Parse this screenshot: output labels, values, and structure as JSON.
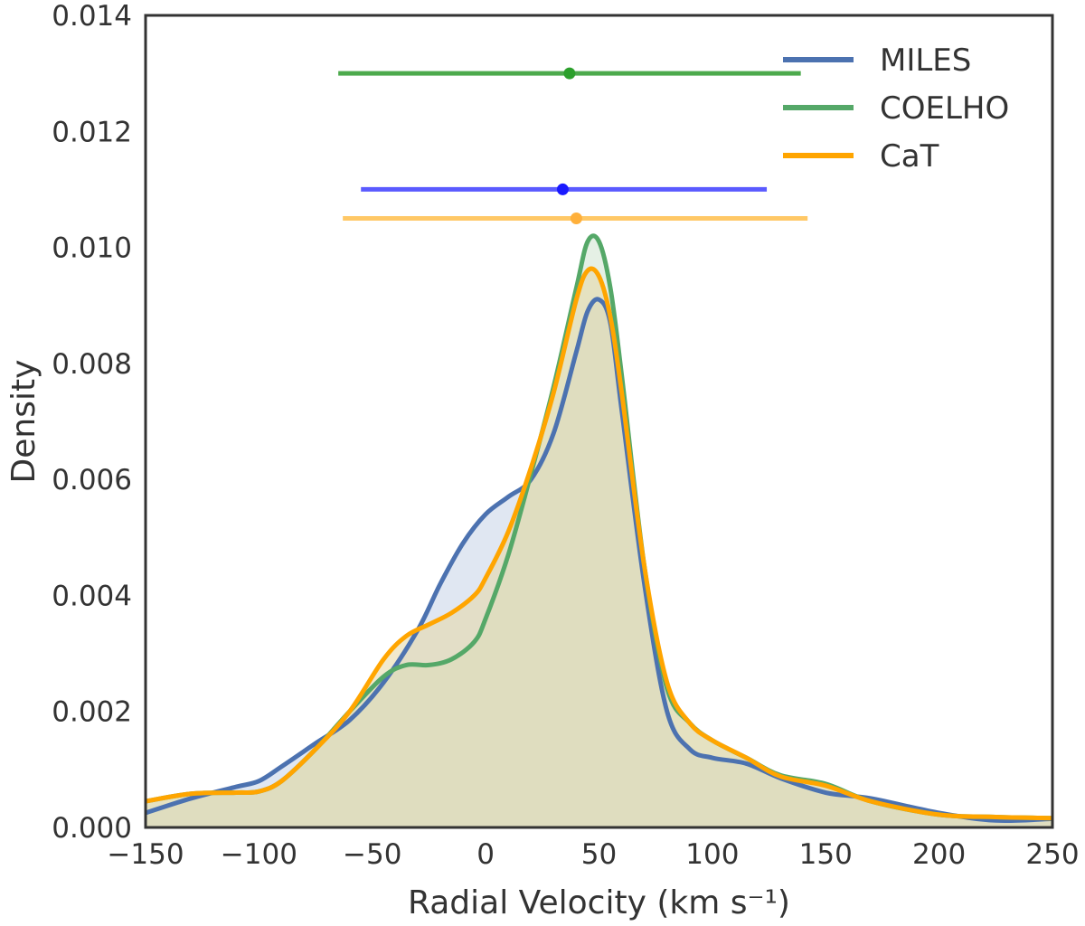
{
  "chart_data": {
    "type": "area",
    "title": "",
    "xlabel": "Radial Velocity (km s⁻¹)",
    "ylabel": "Density",
    "xlim": [
      -150,
      250
    ],
    "ylim": [
      0,
      0.014
    ],
    "x_ticks": [
      -150,
      -100,
      -50,
      0,
      50,
      100,
      150,
      200,
      250
    ],
    "x_tick_labels": [
      "−150",
      "−100",
      "−50",
      "0",
      "50",
      "100",
      "150",
      "200",
      "250"
    ],
    "y_ticks": [
      0,
      0.002,
      0.004,
      0.006,
      0.008,
      0.01,
      0.012,
      0.014
    ],
    "y_tick_labels": [
      "0.000",
      "0.002",
      "0.004",
      "0.006",
      "0.008",
      "0.010",
      "0.012",
      "0.014"
    ],
    "grid": false,
    "legend_position": "top-right",
    "series": [
      {
        "name": "MILES",
        "color": "#4c72b0",
        "fill": "#c7d3e8",
        "x": [
          -150,
          -130,
          -110,
          -100,
          -90,
          -75,
          -60,
          -45,
          -30,
          -20,
          -10,
          0,
          10,
          20,
          30,
          40,
          45,
          50,
          55,
          60,
          70,
          80,
          90,
          100,
          115,
          130,
          150,
          170,
          200,
          225,
          250
        ],
        "y": [
          0.00025,
          0.0005,
          0.0007,
          0.0008,
          0.00105,
          0.00145,
          0.00185,
          0.0025,
          0.0034,
          0.0042,
          0.0049,
          0.0054,
          0.0057,
          0.006,
          0.0068,
          0.0082,
          0.0089,
          0.0091,
          0.0087,
          0.0072,
          0.0042,
          0.002,
          0.00135,
          0.0012,
          0.0011,
          0.00085,
          0.0006,
          0.0005,
          0.00025,
          0.00012,
          0.00015
        ]
      },
      {
        "name": "COELHO",
        "color": "#55a868",
        "fill": "#cfe3cf",
        "x": [
          -150,
          -130,
          -110,
          -100,
          -90,
          -75,
          -60,
          -45,
          -35,
          -25,
          -15,
          -5,
          0,
          10,
          20,
          30,
          40,
          45,
          50,
          55,
          60,
          70,
          80,
          90,
          100,
          115,
          130,
          150,
          170,
          200,
          225,
          250
        ],
        "y": [
          0.00045,
          0.00058,
          0.0006,
          0.00062,
          0.0008,
          0.00135,
          0.002,
          0.0026,
          0.0028,
          0.0028,
          0.0029,
          0.0032,
          0.0036,
          0.0047,
          0.0061,
          0.0076,
          0.0093,
          0.0101,
          0.0101,
          0.0093,
          0.0078,
          0.0045,
          0.0024,
          0.0018,
          0.0015,
          0.0012,
          0.0009,
          0.00075,
          0.00045,
          0.00022,
          0.00018,
          0.00016
        ]
      },
      {
        "name": "CaT",
        "color": "#ffa500",
        "fill": "#e5d7a4",
        "x": [
          -150,
          -130,
          -110,
          -100,
          -90,
          -75,
          -60,
          -45,
          -35,
          -25,
          -15,
          -5,
          0,
          10,
          20,
          30,
          40,
          45,
          50,
          55,
          60,
          70,
          80,
          90,
          100,
          115,
          130,
          150,
          170,
          200,
          225,
          250
        ],
        "y": [
          0.00045,
          0.00058,
          0.0006,
          0.00062,
          0.0008,
          0.00135,
          0.002,
          0.0029,
          0.0033,
          0.0035,
          0.0037,
          0.004,
          0.0043,
          0.0051,
          0.0062,
          0.0075,
          0.0091,
          0.0096,
          0.0095,
          0.0088,
          0.0075,
          0.0045,
          0.0025,
          0.0018,
          0.0015,
          0.0012,
          0.00088,
          0.00072,
          0.00045,
          0.00022,
          0.00018,
          0.00016
        ]
      }
    ],
    "error_bars": [
      {
        "name": "COELHO",
        "color": "#2ca02c",
        "line_color": "#4daa4d",
        "center": 37,
        "low": -65,
        "high": 139,
        "y": 0.013
      },
      {
        "name": "MILES",
        "color": "#1a1aff",
        "line_color": "#5a5aff",
        "center": 34,
        "low": -55,
        "high": 124,
        "y": 0.011
      },
      {
        "name": "CaT",
        "color": "#ffb03b",
        "line_color": "#ffc866",
        "center": 40,
        "low": -63,
        "high": 142,
        "y": 0.0105
      }
    ]
  }
}
